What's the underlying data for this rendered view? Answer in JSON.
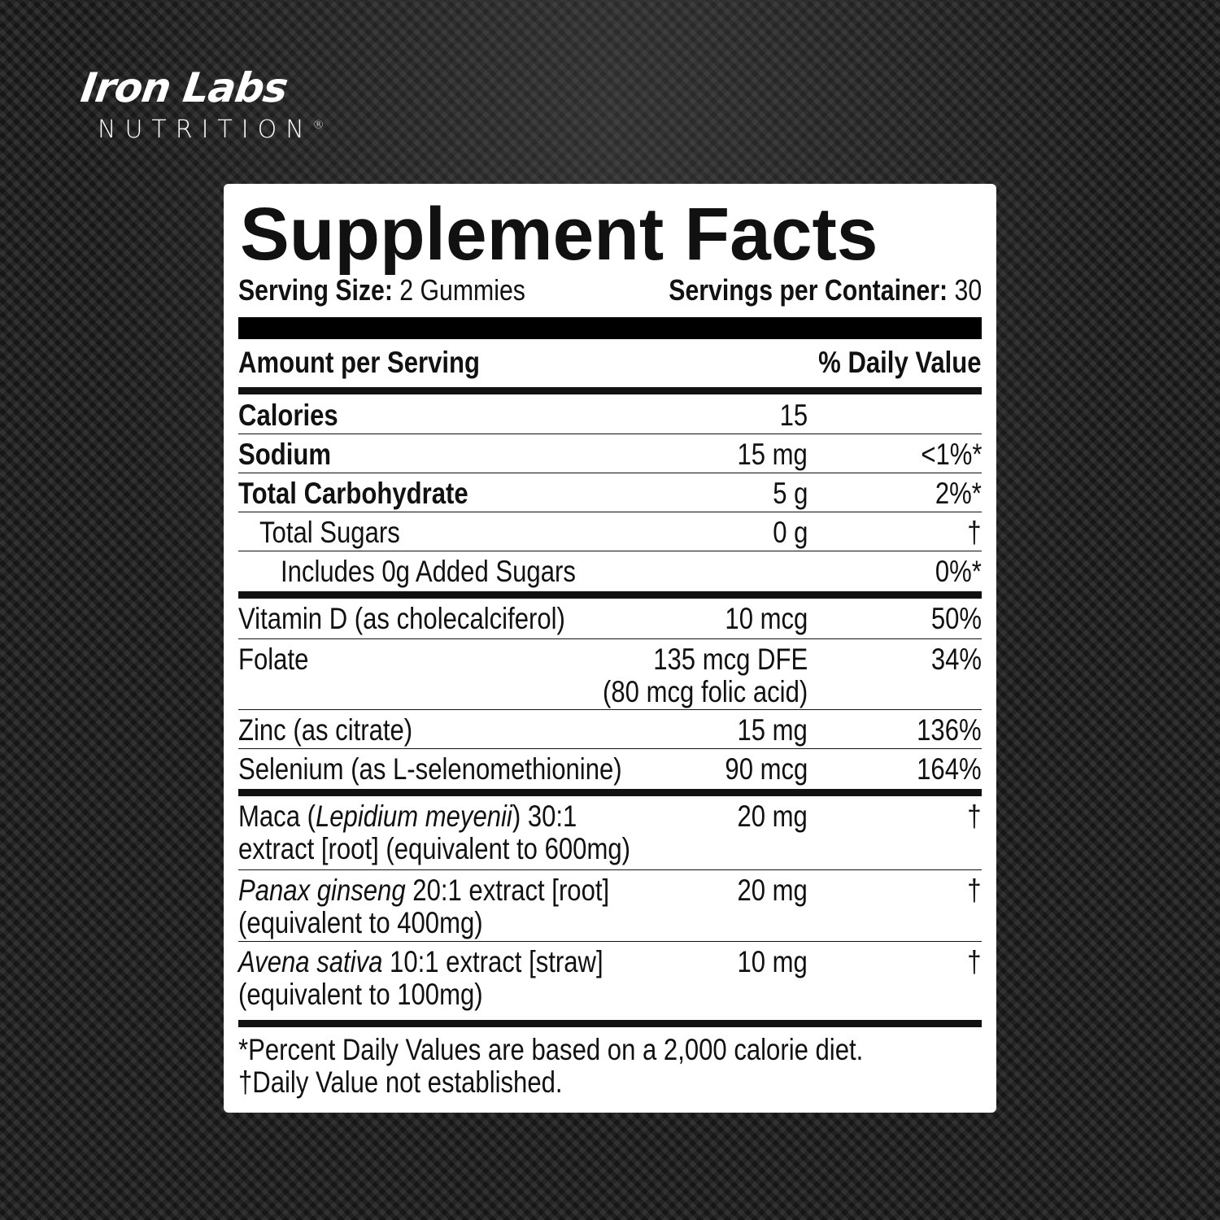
{
  "brand": {
    "name": "Iron Labs",
    "sub": "NUTRITION",
    "reg": "®"
  },
  "label": {
    "title": "Supplement Facts",
    "serving_size_label": "Serving Size:",
    "serving_size": " 2 Gummies",
    "servings_label": "Servings per Container:",
    "servings": " 30",
    "amount_header": "Amount per Serving",
    "dv_header": "% Daily Value",
    "rows": [
      {
        "name": [
          {
            "t": "Calories"
          }
        ],
        "amount": "15",
        "dv": "",
        "bold": true,
        "h": 48,
        "indent": 0,
        "sep": "line"
      },
      {
        "name": [
          {
            "t": "Sodium"
          }
        ],
        "amount": "15 mg",
        "dv": "<1%*",
        "bold": true,
        "h": 48,
        "indent": 0,
        "sep": "line"
      },
      {
        "name": [
          {
            "t": "Total Carbohydrate"
          }
        ],
        "amount": "5 g",
        "dv": "2%*",
        "bold": true,
        "h": 48,
        "indent": 0,
        "sep": "line"
      },
      {
        "name": [
          {
            "t": "Total Sugars"
          }
        ],
        "amount": "0 g",
        "dv": "†",
        "bold": false,
        "h": 48,
        "indent": 1,
        "sep": "line"
      },
      {
        "name": [
          {
            "t": "Includes 0g Added Sugars"
          }
        ],
        "amount": "",
        "dv": "0%*",
        "bold": false,
        "h": 58,
        "indent": 2,
        "sep": "heavy"
      },
      {
        "name": [
          {
            "t": "Vitamin D (as cholecalciferol)"
          }
        ],
        "amount": "10 mcg",
        "dv": "50%",
        "bold": false,
        "h": 50,
        "indent": 0,
        "sep": "line"
      },
      {
        "name": [
          {
            "t": "Folate"
          }
        ],
        "amount": "135 mcg DFE\n(80 mcg folic acid)",
        "dv": "34%",
        "bold": false,
        "h": 87,
        "indent": 0,
        "sep": "line"
      },
      {
        "name": [
          {
            "t": "Zinc (as citrate)"
          }
        ],
        "amount": "15 mg",
        "dv": "136%",
        "bold": false,
        "h": 48,
        "indent": 0,
        "sep": "line"
      },
      {
        "name": [
          {
            "t": "Selenium (as L-selenomethionine)"
          }
        ],
        "amount": "90 mcg",
        "dv": "164%",
        "bold": false,
        "h": 58,
        "indent": 0,
        "sep": "heavy"
      },
      {
        "name": [
          {
            "t": "Maca ("
          },
          {
            "t": "Lepidium meyenii",
            "i": true
          },
          {
            "t": ") 30:1\nextract [root] (equivalent to 600mg)"
          }
        ],
        "amount": "20 mg",
        "dv": "†",
        "bold": false,
        "h": 91,
        "indent": 0,
        "sep": "line"
      },
      {
        "name": [
          {
            "t": "Panax ginseng",
            "i": true
          },
          {
            "t": " 20:1 extract [root]\n(equivalent to 400mg)"
          }
        ],
        "amount": "20 mg",
        "dv": "†",
        "bold": false,
        "h": 88,
        "indent": 0,
        "sep": "line"
      },
      {
        "name": [
          {
            "t": "Avena sativa",
            "i": true
          },
          {
            "t": " 10:1 extract [straw]\n(equivalent to 100mg)"
          }
        ],
        "amount": "10 mg",
        "dv": "†",
        "bold": false,
        "h": 105,
        "indent": 0,
        "sep": "heavy"
      }
    ],
    "footnote1": "*Percent Daily Values are based on a 2,000 calorie diet.",
    "footnote2": "†Daily Value not established."
  },
  "colors": {
    "background": "#1e1e1e",
    "panel": "#ffffff",
    "ink": "#111111"
  }
}
